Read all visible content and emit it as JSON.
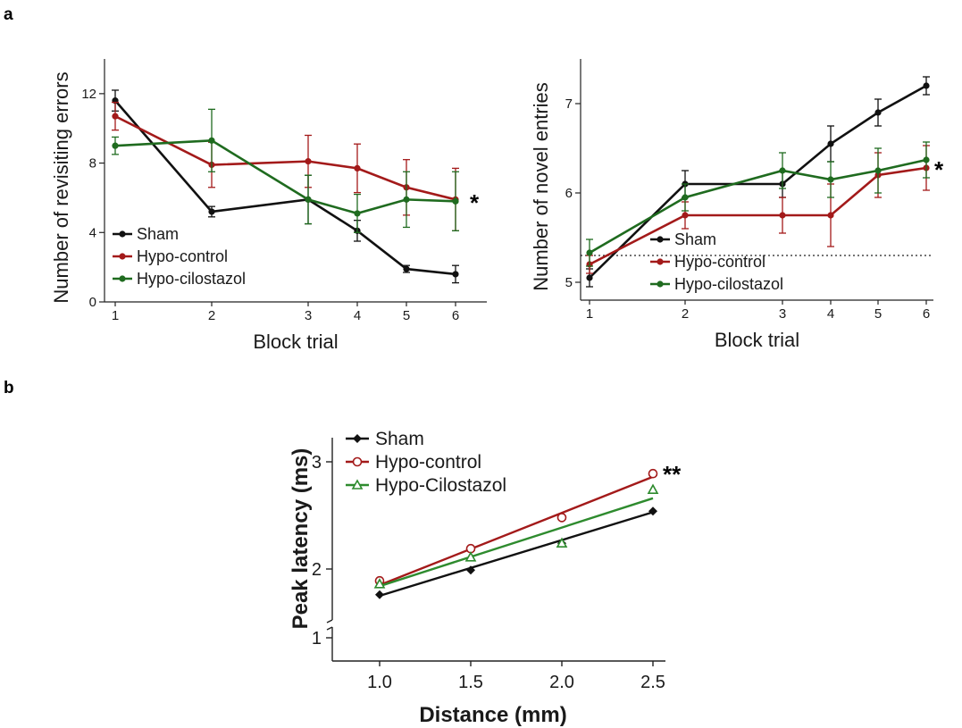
{
  "panels": {
    "a": "a",
    "b": "b"
  },
  "chart_data": [
    {
      "type": "line",
      "panel": "a",
      "x": [
        1,
        2,
        3,
        4,
        5,
        6
      ],
      "xlabel": "Block trial",
      "ylabel": "Number of revisiting errors",
      "ylim": [
        0,
        14
      ],
      "yticks": [
        0,
        4,
        8,
        12
      ],
      "xticks": [
        1,
        2,
        3,
        4,
        5,
        6
      ],
      "significance": "*",
      "legend_position": "bottom-left",
      "series": [
        {
          "name": "Sham",
          "color": "#111111",
          "values": [
            11.6,
            5.2,
            5.9,
            4.1,
            1.9,
            1.6
          ],
          "errors": [
            0.6,
            0.3,
            1.4,
            0.6,
            0.2,
            0.5
          ]
        },
        {
          "name": "Hypo-control",
          "color": "#a31a1a",
          "values": [
            10.7,
            7.9,
            8.1,
            7.7,
            6.6,
            5.9
          ],
          "errors": [
            0.8,
            1.3,
            1.5,
            1.4,
            1.6,
            1.8
          ]
        },
        {
          "name": "Hypo-cilostazol",
          "color": "#1f6b1f",
          "values": [
            9.0,
            9.3,
            5.9,
            5.1,
            5.9,
            5.8
          ],
          "errors": [
            0.5,
            1.8,
            1.4,
            1.1,
            1.6,
            1.7
          ]
        }
      ]
    },
    {
      "type": "line",
      "panel": "a",
      "x": [
        1,
        2,
        3,
        4,
        5,
        6
      ],
      "xlabel": "Block trial",
      "ylabel": "Number of novel entries",
      "ylim": [
        4.8,
        7.5
      ],
      "yticks": [
        5,
        6,
        7
      ],
      "xticks": [
        1,
        2,
        3,
        4,
        5,
        6
      ],
      "reference_line": 5.3,
      "significance": "*",
      "legend_position": "bottom-center",
      "series": [
        {
          "name": "Sham",
          "color": "#111111",
          "values": [
            5.05,
            6.1,
            6.1,
            6.55,
            6.9,
            7.2
          ],
          "errors": [
            0.1,
            0.15,
            0.15,
            0.2,
            0.15,
            0.1
          ]
        },
        {
          "name": "Hypo-control",
          "color": "#a31a1a",
          "values": [
            5.2,
            5.75,
            5.75,
            5.75,
            6.2,
            6.28
          ],
          "errors": [
            0.1,
            0.15,
            0.2,
            0.35,
            0.25,
            0.25
          ]
        },
        {
          "name": "Hypo-cilostazol",
          "color": "#1f6b1f",
          "values": [
            5.33,
            5.95,
            6.25,
            6.15,
            6.25,
            6.37
          ],
          "errors": [
            0.15,
            0.15,
            0.2,
            0.2,
            0.25,
            0.2
          ]
        }
      ]
    },
    {
      "type": "scatter",
      "panel": "b",
      "x": [
        1.0,
        1.5,
        2.0,
        2.5
      ],
      "xlabel": "Distance (mm)",
      "ylabel": "Peak latency (ms)",
      "ylim": [
        1,
        3.1
      ],
      "xlim": [
        0.75,
        2.55
      ],
      "yticks": [
        1,
        2,
        3
      ],
      "xticks": [
        "1.0",
        "1.5",
        "2.0",
        "2.5"
      ],
      "axis_break": true,
      "significance": "**",
      "legend_position": "top-left",
      "series": [
        {
          "name": "Sham",
          "color": "#111111",
          "marker": "filled-diamond",
          "values": [
            1.76,
            1.99,
            2.24,
            2.54
          ],
          "fit": [
            1.75,
            2.53
          ]
        },
        {
          "name": "Hypo-control",
          "color": "#a31a1a",
          "marker": "open-diamond",
          "values": [
            1.89,
            2.19,
            2.48,
            2.89
          ],
          "fit": [
            1.85,
            2.86
          ]
        },
        {
          "name": "Hypo-Cilostazol",
          "color": "#2e8b2e",
          "marker": "open-triangle",
          "values": [
            1.86,
            2.11,
            2.24,
            2.74
          ],
          "fit": [
            1.84,
            2.66
          ]
        }
      ]
    }
  ]
}
